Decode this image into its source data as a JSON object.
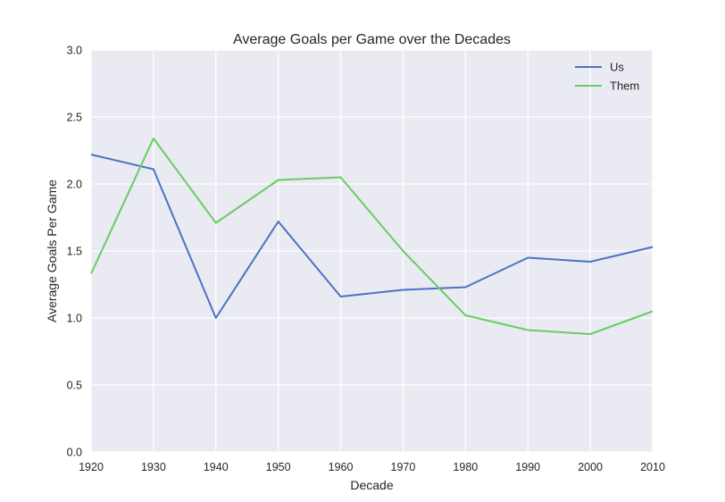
{
  "chart_data": {
    "type": "line",
    "title": "Average Goals per Game over the Decades",
    "xlabel": "Decade",
    "ylabel": "Average Goals Per Game",
    "x": [
      1920,
      1930,
      1940,
      1950,
      1960,
      1970,
      1980,
      1990,
      2000,
      2010
    ],
    "xlim": [
      1920,
      2010
    ],
    "ylim": [
      0,
      3.0
    ],
    "x_ticks": [
      "1920",
      "1930",
      "1940",
      "1950",
      "1960",
      "1970",
      "1980",
      "1990",
      "2000",
      "2010"
    ],
    "y_ticks": [
      "0.0",
      "0.5",
      "1.0",
      "1.5",
      "2.0",
      "2.5",
      "3.0"
    ],
    "grid": true,
    "legend_position": "top-right",
    "series": [
      {
        "name": "Us",
        "color": "#4c72c4",
        "values": [
          2.22,
          2.11,
          1.0,
          1.72,
          1.16,
          1.21,
          1.23,
          1.45,
          1.42,
          1.53
        ]
      },
      {
        "name": "Them",
        "color": "#6acc65",
        "values": [
          1.33,
          2.34,
          1.71,
          2.03,
          2.05,
          1.5,
          1.02,
          0.91,
          0.88,
          1.05
        ]
      }
    ]
  }
}
